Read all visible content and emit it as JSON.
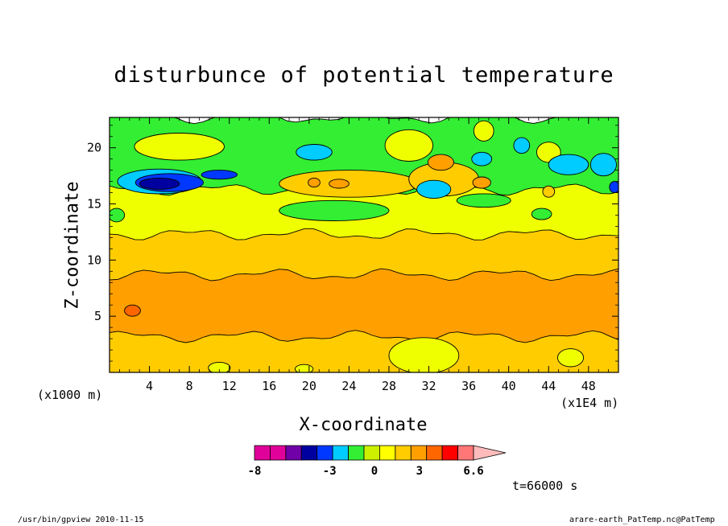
{
  "chart_data": {
    "type": "heatmap",
    "title": "disturbunce of potential temperature",
    "xlabel": "X-coordinate",
    "ylabel": "Z-coordinate",
    "x_unit_label": "(x1000 m)",
    "x_unit_label_right": "(x1E4 m)",
    "x_ticks": [
      4,
      8,
      12,
      16,
      20,
      24,
      28,
      32,
      36,
      40,
      44,
      48
    ],
    "y_ticks": [
      5,
      10,
      15,
      20
    ],
    "xlim": [
      0,
      51
    ],
    "ylim": [
      0,
      22.7
    ],
    "time_label": "t=66000 s",
    "colorbar": {
      "labels": [
        "-8",
        "-3",
        "0",
        "3",
        "6.6"
      ],
      "label_values": [
        -8,
        -3,
        0,
        3,
        6.6
      ],
      "colors": [
        "#e0009a",
        "#e0009a",
        "#7000a8",
        "#0000a0",
        "#0038ff",
        "#00ccff",
        "#33ee33",
        "#ccf000",
        "#ffff00",
        "#ffcc00",
        "#ffa000",
        "#ff6600",
        "#ff0000",
        "#ff7777",
        "#ffbbbb"
      ]
    },
    "bands": [
      {
        "z": [
          0,
          3.2
        ],
        "color": "#ffcc00"
      },
      {
        "z": [
          3.2,
          8.7
        ],
        "color": "#ffa000"
      },
      {
        "z": [
          8.7,
          12.3
        ],
        "color": "#ffcc00"
      },
      {
        "z": [
          12.3,
          16.3
        ],
        "color": "#f0ff00"
      },
      {
        "z": [
          16.3,
          22.7
        ],
        "color": "#33ee33"
      }
    ],
    "features": [
      {
        "x": 5,
        "z": 17,
        "rx": 4.2,
        "rz": 1.1,
        "color": "#00ccff"
      },
      {
        "x": 6,
        "z": 16.9,
        "rx": 3.4,
        "rz": 0.8,
        "color": "#0038ff"
      },
      {
        "x": 5,
        "z": 16.8,
        "rx": 2.0,
        "rz": 0.5,
        "color": "#0000a0"
      },
      {
        "x": 11,
        "z": 17.6,
        "rx": 1.8,
        "rz": 0.4,
        "color": "#0038ff"
      },
      {
        "x": 7,
        "z": 20.1,
        "rx": 4.5,
        "rz": 1.2,
        "color": "#f0ff00"
      },
      {
        "x": 20.5,
        "z": 19.6,
        "rx": 1.8,
        "rz": 0.7,
        "color": "#00ccff"
      },
      {
        "x": 30,
        "z": 20.2,
        "rx": 2.4,
        "rz": 1.4,
        "color": "#f0ff00"
      },
      {
        "x": 37.5,
        "z": 21.5,
        "rx": 1.0,
        "rz": 0.9,
        "color": "#f0ff00"
      },
      {
        "x": 37.3,
        "z": 19,
        "rx": 1.0,
        "rz": 0.6,
        "color": "#00ccff"
      },
      {
        "x": 41.3,
        "z": 20.2,
        "rx": 0.8,
        "rz": 0.7,
        "color": "#00ccff"
      },
      {
        "x": 44,
        "z": 19.6,
        "rx": 1.2,
        "rz": 0.9,
        "color": "#f0ff00"
      },
      {
        "x": 46,
        "z": 18.5,
        "rx": 2.0,
        "rz": 0.9,
        "color": "#00ccff"
      },
      {
        "x": 49.5,
        "z": 18.5,
        "rx": 1.3,
        "rz": 1.0,
        "color": "#00ccff"
      },
      {
        "x": 50.6,
        "z": 16.5,
        "rx": 0.5,
        "rz": 0.5,
        "color": "#0038ff"
      },
      {
        "x": 24,
        "z": 16.8,
        "rx": 7.0,
        "rz": 1.2,
        "color": "#ffcc00"
      },
      {
        "x": 33.5,
        "z": 17.2,
        "rx": 3.5,
        "rz": 1.5,
        "color": "#ffcc00"
      },
      {
        "x": 33.2,
        "z": 18.7,
        "rx": 1.3,
        "rz": 0.7,
        "color": "#ffa000"
      },
      {
        "x": 37.3,
        "z": 16.9,
        "rx": 0.9,
        "rz": 0.5,
        "color": "#ffa000"
      },
      {
        "x": 20.5,
        "z": 16.9,
        "rx": 0.6,
        "rz": 0.4,
        "color": "#ffa000"
      },
      {
        "x": 23,
        "z": 16.8,
        "rx": 1.0,
        "rz": 0.4,
        "color": "#ffa000"
      },
      {
        "x": 32.5,
        "z": 16.3,
        "rx": 1.7,
        "rz": 0.8,
        "color": "#00ccff"
      },
      {
        "x": 44,
        "z": 16.1,
        "rx": 0.6,
        "rz": 0.5,
        "color": "#ffcc00"
      },
      {
        "x": 22.5,
        "z": 14.4,
        "rx": 5.5,
        "rz": 0.9,
        "color": "#33ee33"
      },
      {
        "x": 37.5,
        "z": 15.3,
        "rx": 2.7,
        "rz": 0.6,
        "color": "#33ee33"
      },
      {
        "x": 43.3,
        "z": 14.1,
        "rx": 1.0,
        "rz": 0.5,
        "color": "#33ee33"
      },
      {
        "x": 0.7,
        "z": 14,
        "rx": 0.8,
        "rz": 0.6,
        "color": "#33ee33"
      },
      {
        "x": 2.3,
        "z": 5.5,
        "rx": 0.8,
        "rz": 0.5,
        "color": "#ff6600"
      },
      {
        "x": 31.5,
        "z": 1.5,
        "rx": 3.5,
        "rz": 1.6,
        "color": "#f0ff00"
      },
      {
        "x": 46.2,
        "z": 1.3,
        "rx": 1.3,
        "rz": 0.8,
        "color": "#f0ff00"
      },
      {
        "x": 11,
        "z": 0.4,
        "rx": 1.1,
        "rz": 0.5,
        "color": "#f0ff00"
      },
      {
        "x": 19.5,
        "z": 0.3,
        "rx": 0.9,
        "rz": 0.4,
        "color": "#f0ff00"
      }
    ]
  },
  "footer": {
    "left": "/usr/bin/gpview  2010-11-15",
    "right": "arare-earth_PatTemp.nc@PatTemp"
  }
}
